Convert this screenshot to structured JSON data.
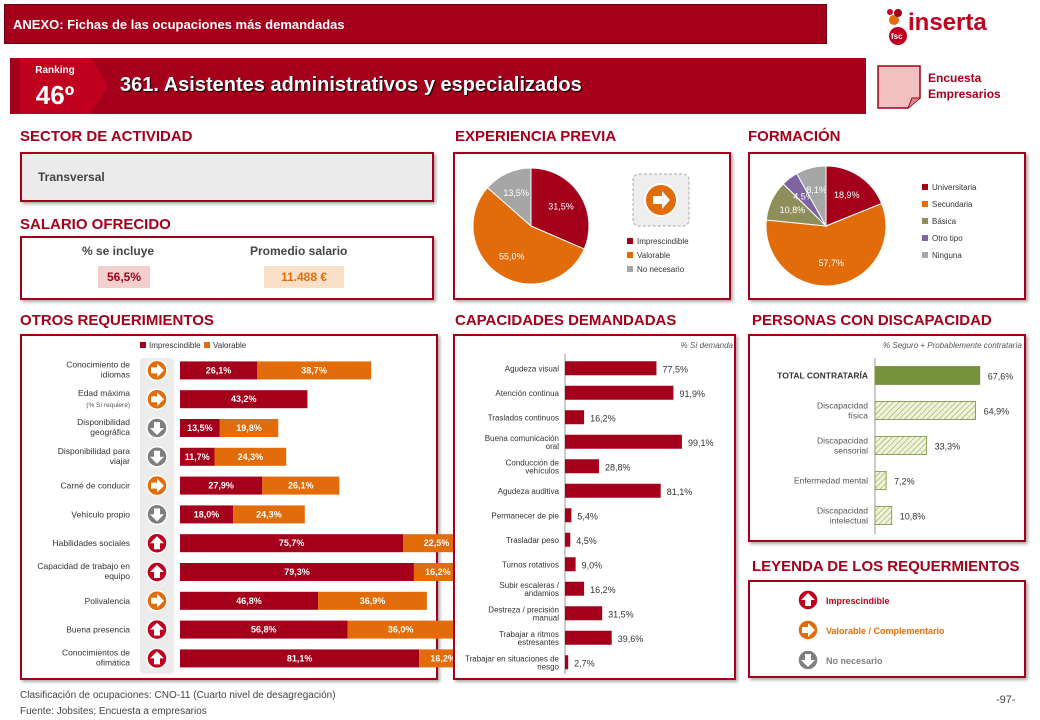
{
  "header": {
    "title": "ANEXO: Fichas de las ocupaciones más demandadas",
    "logo_text": "inserta",
    "logo_sub": "fsc"
  },
  "ranking": {
    "label": "Ranking",
    "value": "46º",
    "title": "361. Asistentes administrativos y especializados"
  },
  "encuesta": {
    "line1": "Encuesta",
    "line2": "Empresarios"
  },
  "sector": {
    "heading": "SECTOR DE ACTIVIDAD",
    "value": "Transversal"
  },
  "salario": {
    "heading": "SALARIO OFRECIDO",
    "col1": "% se incluye",
    "col2": "Promedio salario",
    "pct": "56,5%",
    "avg": "11.488 €"
  },
  "experiencia": {
    "heading": "EXPERIENCIA PREVIA",
    "legend": [
      "Imprescindible",
      "Valorable",
      "No necesario"
    ],
    "labels": [
      "31,5%",
      "55,0%",
      "13,5%"
    ],
    "colors": [
      "#a5001b",
      "#e36c0a",
      "#a6a6a6"
    ]
  },
  "formacion": {
    "heading": "FORMACIÓN",
    "legend": [
      "Universitaria",
      "Secundaria",
      "Básica",
      "Otro tipo",
      "Ninguna"
    ],
    "labels": [
      "18,9%",
      "57,7%",
      "10,8%",
      "4,5%",
      "8,1%"
    ],
    "colors": [
      "#a5001b",
      "#e36c0a",
      "#8e8e5a",
      "#8064a2",
      "#a6a6a6"
    ]
  },
  "otros": {
    "heading": "OTROS REQUERIMIENTOS",
    "legend": [
      "Imprescindible",
      "Valorable"
    ],
    "rows": [
      {
        "label": "Conocimiento de idiomas",
        "sub": "",
        "a": "26,1%",
        "b": "38,7%",
        "icon": "arrow-right"
      },
      {
        "label": "Edad máxima",
        "sub": "(% Sí requiere)",
        "a": "43,2%",
        "b": "",
        "icon": "arrow-right"
      },
      {
        "label": "Disponibilidad geográfica",
        "sub": "",
        "a": "13,5%",
        "b": "19,8%",
        "icon": "arrow-down"
      },
      {
        "label": "Disponibilidad para viajar",
        "sub": "",
        "a": "11,7%",
        "b": "24,3%",
        "icon": "arrow-down"
      },
      {
        "label": "Carné de conducir",
        "sub": "",
        "a": "27,9%",
        "b": "26,1%",
        "icon": "arrow-right"
      },
      {
        "label": "Vehículo propio",
        "sub": "",
        "a": "18,0%",
        "b": "24,3%",
        "icon": "arrow-down"
      },
      {
        "label": "Habilidades sociales",
        "sub": "",
        "a": "75,7%",
        "b": "22,5%",
        "icon": "arrow-up"
      },
      {
        "label": "Capacidad de trabajo en equipo",
        "sub": "",
        "a": "79,3%",
        "b": "16,2%",
        "icon": "arrow-up"
      },
      {
        "label": "Polivalencia",
        "sub": "",
        "a": "46,8%",
        "b": "36,9%",
        "icon": "arrow-right"
      },
      {
        "label": "Buena presencia",
        "sub": "",
        "a": "56,8%",
        "b": "36,0%",
        "icon": "arrow-up"
      },
      {
        "label": "Conocimientos de ofimática",
        "sub": "",
        "a": "81,1%",
        "b": "16,2%",
        "icon": "arrow-up"
      }
    ]
  },
  "capacidades": {
    "heading": "CAPACIDADES DEMANDADAS",
    "note": "% Sí demanda",
    "items": [
      {
        "label": "Agudeza visual",
        "value": "77,5%"
      },
      {
        "label": "Atención continua",
        "value": "91,9%"
      },
      {
        "label": "Traslados continuos",
        "value": "16,2%"
      },
      {
        "label": "Buena comunicación oral",
        "value": "99,1%"
      },
      {
        "label": "Conducción de vehículos",
        "value": "28,8%"
      },
      {
        "label": "Agudeza auditiva",
        "value": "81,1%"
      },
      {
        "label": "Permanecer de pie",
        "value": "5,4%"
      },
      {
        "label": "Trasladar peso",
        "value": "4,5%"
      },
      {
        "label": "Turnos rotativos",
        "value": "9,0%"
      },
      {
        "label": "Subir escaleras / andamios",
        "value": "16,2%"
      },
      {
        "label": "Destreza / precisión manual",
        "value": "31,5%"
      },
      {
        "label": "Trabajar a ritmos estresantes",
        "value": "39,6%"
      },
      {
        "label": "Trabajar en situaciones de riesgo",
        "value": "2,7%"
      }
    ]
  },
  "discapacidad": {
    "heading": "PERSONAS CON DISCAPACIDAD",
    "note": "% Seguro + Probablemente contrataría",
    "items": [
      {
        "label": "TOTAL CONTRATARÍA",
        "value": "67,6%"
      },
      {
        "label": "Discapacidad física",
        "value": "64,9%"
      },
      {
        "label": "Discapacidad sensorial",
        "value": "33,3%"
      },
      {
        "label": "Enfermedad mental",
        "value": "7,2%"
      },
      {
        "label": "Discapacidad intelectual",
        "value": "10,8%"
      }
    ]
  },
  "leyenda": {
    "heading": "LEYENDA DE LOS REQUERMIENTOS",
    "items": [
      "Imprescindible",
      "Valorable / Complementario",
      "No necesario"
    ]
  },
  "footer": {
    "line1": "Clasificación de ocupaciones: CNO-11 (Cuarto nivel de desagregación)",
    "line2": "Fuente: Jobsites; Encuesta a empresarios",
    "page": "-97-"
  },
  "chart_data": [
    {
      "type": "pie",
      "title": "EXPERIENCIA PREVIA",
      "categories": [
        "Imprescindible",
        "Valorable",
        "No necesario"
      ],
      "values": [
        31.5,
        55.0,
        13.5
      ]
    },
    {
      "type": "pie",
      "title": "FORMACIÓN",
      "categories": [
        "Universitaria",
        "Secundaria",
        "Básica",
        "Otro tipo",
        "Ninguna"
      ],
      "values": [
        18.9,
        57.7,
        10.8,
        4.5,
        8.1
      ]
    },
    {
      "type": "bar",
      "title": "OTROS REQUERIMIENTOS",
      "categories": [
        "Conocimiento de idiomas",
        "Edad máxima",
        "Disponibilidad geográfica",
        "Disponibilidad para viajar",
        "Carné de conducir",
        "Vehículo propio",
        "Habilidades sociales",
        "Capacidad de trabajo en equipo",
        "Polivalencia",
        "Buena presencia",
        "Conocimientos de ofimática"
      ],
      "series": [
        {
          "name": "Imprescindible",
          "values": [
            26.1,
            43.2,
            13.5,
            11.7,
            27.9,
            18.0,
            75.7,
            79.3,
            46.8,
            56.8,
            81.1
          ]
        },
        {
          "name": "Valorable",
          "values": [
            38.7,
            0,
            19.8,
            24.3,
            26.1,
            24.3,
            22.5,
            16.2,
            36.9,
            36.0,
            16.2
          ]
        }
      ]
    },
    {
      "type": "bar",
      "title": "CAPACIDADES DEMANDADAS",
      "categories": [
        "Agudeza visual",
        "Atención continua",
        "Traslados continuos",
        "Buena comunicación oral",
        "Conducción de vehículos",
        "Agudeza auditiva",
        "Permanecer de pie",
        "Trasladar peso",
        "Turnos rotativos",
        "Subir escaleras / andamios",
        "Destreza / precisión manual",
        "Trabajar a ritmos estresantes",
        "Trabajar en situaciones de riesgo"
      ],
      "values": [
        77.5,
        91.9,
        16.2,
        99.1,
        28.8,
        81.1,
        5.4,
        4.5,
        9.0,
        16.2,
        31.5,
        39.6,
        2.7
      ]
    },
    {
      "type": "bar",
      "title": "PERSONAS CON DISCAPACIDAD",
      "categories": [
        "TOTAL CONTRATARÍA",
        "Discapacidad física",
        "Discapacidad sensorial",
        "Enfermedad mental",
        "Discapacidad intelectual"
      ],
      "values": [
        67.6,
        64.9,
        33.3,
        7.2,
        10.8
      ]
    }
  ]
}
